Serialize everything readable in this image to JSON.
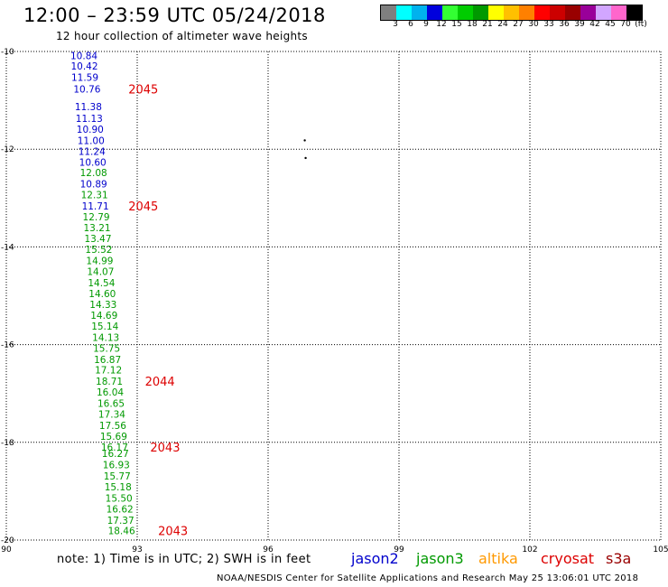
{
  "header": {
    "title": "12:00 – 23:59 UTC 05/24/2018",
    "subtitle": "12 hour collection of altimeter wave heights"
  },
  "colorbar": {
    "colors": [
      "#7f7f7f",
      "#00ffff",
      "#00b2ee",
      "#0000dd",
      "#33ff33",
      "#00cc00",
      "#009900",
      "#ffff00",
      "#ffc000",
      "#ff8000",
      "#ff0000",
      "#cc0000",
      "#990000",
      "#990099",
      "#d2a6ff",
      "#ff66cc",
      "#000000"
    ],
    "labels": [
      "3",
      "6",
      "9",
      "12",
      "15",
      "18",
      "21",
      "24",
      "27",
      "30",
      "33",
      "36",
      "39",
      "42",
      "45",
      "70",
      "(ft)"
    ]
  },
  "chart_data": {
    "type": "scatter",
    "title": "12 hour collection of altimeter wave heights",
    "x_ticks": [
      "90",
      "93",
      "96",
      "99",
      "102",
      "105"
    ],
    "y_ticks": [
      "-10",
      "-12",
      "-14",
      "-16",
      "-18",
      "-20"
    ],
    "xlim": [
      90,
      105
    ],
    "ylim": [
      -20,
      -10
    ],
    "grid": true,
    "series": [
      {
        "name": "jason2",
        "color": "#0000cc",
        "points": [
          {
            "x": 91.78,
            "y": -10.08,
            "label": "10.84"
          },
          {
            "x": 91.79,
            "y": -10.3,
            "label": "10.42"
          },
          {
            "x": 91.8,
            "y": -10.53,
            "label": "11.59"
          },
          {
            "x": 91.85,
            "y": -10.77,
            "label": "10.76"
          },
          {
            "x": 91.88,
            "y": -11.13,
            "label": "11.38"
          },
          {
            "x": 91.9,
            "y": -11.37,
            "label": "11.13"
          },
          {
            "x": 91.92,
            "y": -11.59,
            "label": "10.90"
          },
          {
            "x": 91.94,
            "y": -11.82,
            "label": "11.00"
          },
          {
            "x": 91.96,
            "y": -12.04,
            "label": "11.24"
          },
          {
            "x": 91.98,
            "y": -12.26,
            "label": "10.60"
          },
          {
            "x": 92.0,
            "y": -12.71,
            "label": "10.89"
          },
          {
            "x": 92.04,
            "y": -13.16,
            "label": "11.71"
          }
        ]
      },
      {
        "name": "jason3",
        "color": "#009900",
        "points": [
          {
            "x": 92.0,
            "y": -12.48,
            "label": "12.08"
          },
          {
            "x": 92.02,
            "y": -12.93,
            "label": "12.31"
          },
          {
            "x": 92.06,
            "y": -13.38,
            "label": "12.79"
          },
          {
            "x": 92.08,
            "y": -13.6,
            "label": "13.21"
          },
          {
            "x": 92.1,
            "y": -13.83,
            "label": "13.47"
          },
          {
            "x": 92.12,
            "y": -14.05,
            "label": "15.52"
          },
          {
            "x": 92.14,
            "y": -14.28,
            "label": "14.99"
          },
          {
            "x": 92.16,
            "y": -14.5,
            "label": "14.07"
          },
          {
            "x": 92.18,
            "y": -14.73,
            "label": "14.54"
          },
          {
            "x": 92.2,
            "y": -14.95,
            "label": "14.60"
          },
          {
            "x": 92.22,
            "y": -15.18,
            "label": "14.33"
          },
          {
            "x": 92.24,
            "y": -15.4,
            "label": "14.69"
          },
          {
            "x": 92.26,
            "y": -15.62,
            "label": "15.14"
          },
          {
            "x": 92.28,
            "y": -15.85,
            "label": "14.13"
          },
          {
            "x": 92.3,
            "y": -16.07,
            "label": "15.75"
          },
          {
            "x": 92.32,
            "y": -16.3,
            "label": "16.87"
          },
          {
            "x": 92.34,
            "y": -16.52,
            "label": "17.12"
          },
          {
            "x": 92.36,
            "y": -16.75,
            "label": "18.71"
          },
          {
            "x": 92.38,
            "y": -16.97,
            "label": "16.04"
          },
          {
            "x": 92.4,
            "y": -17.2,
            "label": "16.65"
          },
          {
            "x": 92.42,
            "y": -17.42,
            "label": "17.34"
          },
          {
            "x": 92.44,
            "y": -17.65,
            "label": "17.56"
          },
          {
            "x": 92.46,
            "y": -17.87,
            "label": "15.69"
          },
          {
            "x": 92.48,
            "y": -18.1,
            "label": "16.17"
          },
          {
            "x": 92.5,
            "y": -18.23,
            "label": "16.27"
          },
          {
            "x": 92.52,
            "y": -18.46,
            "label": "16.93"
          },
          {
            "x": 92.54,
            "y": -18.69,
            "label": "15.77"
          },
          {
            "x": 92.56,
            "y": -18.91,
            "label": "15.18"
          },
          {
            "x": 92.58,
            "y": -19.14,
            "label": "15.50"
          },
          {
            "x": 92.6,
            "y": -19.36,
            "label": "16.62"
          },
          {
            "x": 92.62,
            "y": -19.59,
            "label": "17.37"
          },
          {
            "x": 92.64,
            "y": -19.81,
            "label": "18.46"
          }
        ]
      }
    ],
    "time_labels": [
      {
        "x": 93.14,
        "y": -10.77,
        "label": "2045"
      },
      {
        "x": 93.14,
        "y": -13.16,
        "label": "2045"
      },
      {
        "x": 93.52,
        "y": -16.75,
        "label": "2044"
      },
      {
        "x": 93.64,
        "y": -18.1,
        "label": "2043"
      },
      {
        "x": 93.82,
        "y": -19.81,
        "label": "2043"
      }
    ],
    "isolated_marks": [
      {
        "x": 96.84,
        "y": -11.82
      },
      {
        "x": 96.86,
        "y": -12.18
      }
    ]
  },
  "footer": {
    "note": "note: 1) Time is in UTC; 2) SWH is in feet",
    "legend": [
      {
        "name": "jason2",
        "color": "#0000cc"
      },
      {
        "name": "jason3",
        "color": "#009900"
      },
      {
        "name": "altika",
        "color": "#ff9900"
      },
      {
        "name": "cryosat",
        "color": "#dd0000"
      },
      {
        "name": "s3a",
        "color": "#990000"
      }
    ],
    "credit": "NOAA/NESDIS Center for Satellite Applications and Research     May 25 13:06:01 UTC 2018"
  }
}
